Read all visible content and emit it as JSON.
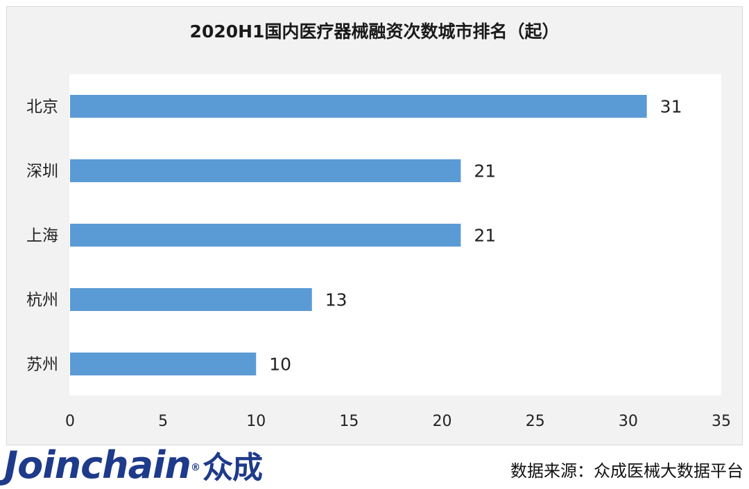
{
  "chart_data": {
    "type": "bar",
    "orientation": "horizontal",
    "title": "2020H1国内医疗器械融资次数城市排名（起）",
    "categories": [
      "北京",
      "深圳",
      "上海",
      "杭州",
      "苏州"
    ],
    "values": [
      31,
      21,
      21,
      13,
      10
    ],
    "xlim": [
      0,
      35
    ],
    "xticks": [
      0,
      5,
      10,
      15,
      20,
      25,
      30,
      35
    ],
    "bar_color": "#5b9bd5",
    "grid": false,
    "legend": false,
    "data_labels": true
  },
  "footer": {
    "logo_text": "Joinchain",
    "logo_reg": "®",
    "logo_cn": "众成",
    "source": "数据来源：众成医械大数据平台"
  },
  "colors": {
    "logo": "#1e3a8a",
    "panel": "#f2f2f2",
    "plot_bg": "#ffffff"
  }
}
